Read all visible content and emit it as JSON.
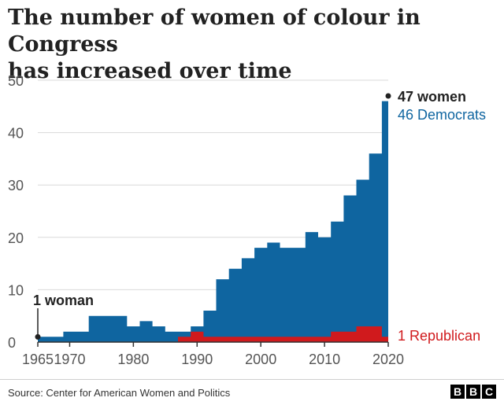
{
  "title_line1": "The number of women of colour in Congress",
  "title_line2": "has increased over time",
  "source": "Source: Center for American Women and Politics",
  "logo": [
    "B",
    "B",
    "C"
  ],
  "colors": {
    "democrats": "#0f65a0",
    "republicans": "#d01a1d",
    "annotation": "#222222",
    "grid": "#d9d9d9",
    "axis": "#333333",
    "tick_label": "#555555"
  },
  "chart_data": {
    "type": "area",
    "xlim": [
      1965,
      2020
    ],
    "ylim": [
      0,
      50
    ],
    "x_ticks": [
      1965,
      1970,
      1980,
      1990,
      2000,
      2010,
      2020
    ],
    "y_ticks": [
      0,
      10,
      20,
      30,
      40,
      50
    ],
    "grid": true,
    "series": [
      {
        "name": "Democrats",
        "step": true,
        "x": [
          1965,
          1969,
          1971,
          1973,
          1979,
          1981,
          1983,
          1985,
          1987,
          1989,
          1991,
          1993,
          1995,
          1997,
          1999,
          2001,
          2003,
          2005,
          2007,
          2009,
          2011,
          2013,
          2015,
          2017,
          2019,
          2020
        ],
        "values": [
          1,
          2,
          2,
          5,
          3,
          4,
          3,
          2,
          2,
          3,
          6,
          12,
          14,
          16,
          18,
          19,
          18,
          18,
          21,
          20,
          23,
          28,
          31,
          36,
          46,
          46
        ]
      },
      {
        "name": "Republicans",
        "step": true,
        "x": [
          1987,
          1989,
          1991,
          1993,
          2011,
          2013,
          2015,
          2017,
          2019,
          2020
        ],
        "values": [
          1,
          2,
          1,
          1,
          2,
          2,
          3,
          3,
          1,
          1
        ]
      }
    ],
    "annotations": {
      "start": {
        "x": 1965,
        "y": 1,
        "text": "1 woman"
      },
      "end_total": {
        "x": 2020,
        "y": 47,
        "text": "47 women"
      },
      "end_democrats": "46 Democrats",
      "end_republicans": "1 Republican"
    }
  }
}
